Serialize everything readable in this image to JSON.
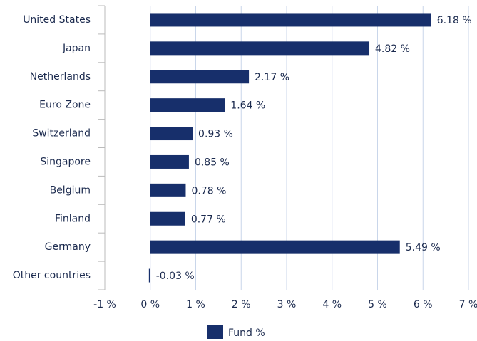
{
  "chart_data": {
    "type": "bar",
    "orientation": "horizontal",
    "categories": [
      "United States",
      "Japan",
      "Netherlands",
      "Euro Zone",
      "Switzerland",
      "Singapore",
      "Belgium",
      "Finland",
      "Germany",
      "Other countries"
    ],
    "series": [
      {
        "name": "Fund %",
        "color": "#172f6b",
        "values": [
          6.18,
          4.82,
          2.17,
          1.64,
          0.93,
          0.85,
          0.78,
          0.77,
          5.49,
          -0.03
        ],
        "value_labels": [
          "6.18 %",
          "4.82 %",
          "2.17 %",
          "1.64 %",
          "0.93 %",
          "0.85 %",
          "0.78 %",
          "0.77 %",
          "5.49 %",
          "-0.03 %"
        ]
      }
    ],
    "xlim": [
      -1,
      7
    ],
    "xticks": [
      {
        "value": -1,
        "label": "-1 %"
      },
      {
        "value": 0,
        "label": "0 %"
      },
      {
        "value": 1,
        "label": "1 %"
      },
      {
        "value": 2,
        "label": "2 %"
      },
      {
        "value": 3,
        "label": "3 %"
      },
      {
        "value": 4,
        "label": "4 %"
      },
      {
        "value": 5,
        "label": "5 %"
      },
      {
        "value": 6,
        "label": "6 %"
      },
      {
        "value": 7,
        "label": "7 %"
      }
    ],
    "grid": true,
    "legend": "bottom"
  }
}
